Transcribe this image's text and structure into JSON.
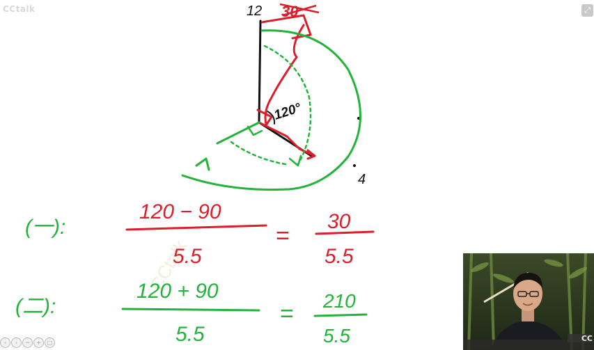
{
  "app": {
    "watermark_label": "CCtalk"
  },
  "whiteboard": {
    "clock_label_12": "12",
    "clock_label_4": "4",
    "angle_label": "120°",
    "top_correction": "30",
    "colors": {
      "black_ink": "#111111",
      "red_ink": "#dc1e2a",
      "green_ink": "#23b33a"
    },
    "case_1": {
      "label": "(一):",
      "numerator": "120 − 90",
      "denominator": "5.5",
      "equals": "=",
      "result_numerator": "30",
      "result_denominator": "5.5"
    },
    "case_2": {
      "label": "(二):",
      "numerator": "120 + 90",
      "denominator": "5.5",
      "equals": "=",
      "result_numerator": "210",
      "result_denominator": "5.5"
    }
  },
  "controls": {
    "fullscreen_icon": "expand-icon",
    "bottom_tools": [
      "prev-icon",
      "next-icon",
      "zoom-out-icon",
      "zoom-in-icon",
      "page-icon"
    ]
  },
  "webcam": {
    "watermark": "CC"
  }
}
